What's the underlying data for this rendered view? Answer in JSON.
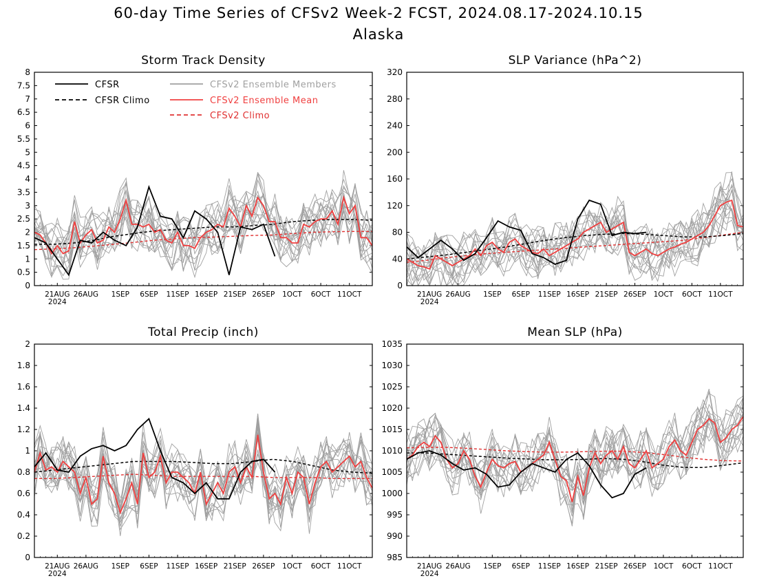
{
  "header": {
    "title": "60-day Time Series of CFSv2 Week-2 FCST, 2024.08.17-2024.10.15",
    "region": "Alaska"
  },
  "x_axis": {
    "tick_labels": [
      "21AUG",
      "26AUG",
      "1SEP",
      "6SEP",
      "11SEP",
      "16SEP",
      "21SEP",
      "26SEP",
      "1OCT",
      "6OCT",
      "11OCT"
    ],
    "tick_days": [
      4,
      9,
      15,
      20,
      25,
      30,
      35,
      40,
      45,
      50,
      55
    ],
    "year_label": "2024",
    "range_days": [
      0,
      59
    ]
  },
  "legend": {
    "cfsr": "CFSR",
    "cfsr_climo": "CFSR Climo",
    "members": "CFSv2 Ensemble Members",
    "ens_mean": "CFSv2 Ensemble Mean",
    "cfsv2_climo": "CFSv2 Climo"
  },
  "colors": {
    "cfsr": "#000000",
    "members": "#a0a0a0",
    "ens_mean": "#f04040",
    "cfsv2_climo": "#e03030"
  },
  "chart_data": [
    {
      "type": "line",
      "title": "Storm Track Density",
      "ylim": [
        0,
        8
      ],
      "yticks": [
        "0",
        "0.5",
        "1",
        "1.5",
        "2",
        "2.5",
        "3",
        "3.5",
        "4",
        "4.5",
        "5",
        "5.5",
        "6",
        "6.5",
        "7",
        "7.5",
        "8"
      ],
      "cfsr_x": [
        0,
        2,
        4,
        6,
        8,
        10,
        12,
        14,
        16,
        18,
        20,
        22,
        24,
        26,
        28,
        30,
        32,
        34,
        36,
        38,
        40,
        42
      ],
      "cfsr": [
        1.8,
        1.6,
        1.0,
        0.4,
        1.7,
        1.6,
        2.0,
        1.7,
        1.5,
        2.2,
        3.7,
        2.6,
        2.5,
        1.8,
        2.8,
        2.5,
        2.0,
        0.4,
        2.2,
        2.1,
        2.3,
        1.1
      ],
      "cfsr_climo": [
        1.55,
        1.55,
        1.6,
        1.7,
        1.85,
        1.95,
        2.05,
        2.1,
        2.15,
        2.2,
        2.2,
        2.25,
        2.3,
        2.4,
        2.45,
        2.48,
        2.48,
        2.45
      ],
      "ens_mean": [
        2.0,
        1.9,
        1.6,
        1.2,
        1.5,
        1.2,
        1.3,
        2.4,
        1.6,
        1.9,
        2.1,
        1.6,
        1.7,
        2.2,
        2.0,
        2.5,
        3.2,
        2.3,
        2.3,
        2.2,
        2.3,
        2.0,
        2.1,
        1.7,
        1.6,
        2.0,
        1.5,
        1.5,
        1.4,
        1.8,
        2.0,
        2.1,
        2.3,
        2.2,
        2.9,
        2.6,
        2.2,
        3.0,
        2.6,
        3.3,
        3.0,
        2.4,
        2.4,
        1.8,
        1.8,
        1.6,
        1.6,
        2.3,
        2.2,
        2.4,
        2.5,
        2.5,
        2.8,
        2.3,
        3.3,
        2.7,
        3.0,
        1.8,
        1.8,
        1.5
      ],
      "cfsv2_climo": [
        1.35,
        1.38,
        1.42,
        1.48,
        1.55,
        1.62,
        1.7,
        1.75,
        1.8,
        1.82,
        1.85,
        1.88,
        1.9,
        1.95,
        2.0,
        2.02,
        2.03,
        2.03
      ]
    },
    {
      "type": "line",
      "title": "SLP Variance (hPa^2)",
      "ylim": [
        0,
        320
      ],
      "yticks": [
        "0",
        "40",
        "80",
        "120",
        "160",
        "200",
        "240",
        "280",
        "320"
      ],
      "cfsr_x": [
        0,
        2,
        4,
        6,
        8,
        10,
        12,
        14,
        16,
        18,
        20,
        22,
        24,
        26,
        28,
        30,
        32,
        34,
        36,
        38,
        40,
        42
      ],
      "cfsr": [
        58,
        42,
        55,
        68,
        55,
        38,
        48,
        72,
        97,
        88,
        83,
        48,
        42,
        32,
        38,
        100,
        128,
        122,
        75,
        80,
        78,
        80
      ],
      "cfsr_climo": [
        40,
        43,
        46,
        50,
        54,
        58,
        63,
        68,
        72,
        75,
        77,
        78,
        77,
        75,
        73,
        73,
        75,
        78
      ],
      "ens_mean": [
        40,
        35,
        30,
        28,
        25,
        45,
        40,
        35,
        30,
        35,
        40,
        45,
        55,
        45,
        60,
        65,
        55,
        50,
        65,
        70,
        60,
        55,
        50,
        48,
        55,
        45,
        50,
        55,
        60,
        65,
        70,
        80,
        85,
        90,
        95,
        80,
        85,
        90,
        95,
        50,
        45,
        50,
        55,
        48,
        45,
        50,
        55,
        58,
        62,
        65,
        70,
        75,
        80,
        90,
        105,
        120,
        125,
        128,
        90,
        88
      ],
      "cfsv2_climo": [
        35,
        38,
        42,
        45,
        48,
        50,
        52,
        54,
        56,
        58,
        60,
        62,
        64,
        66,
        68,
        72,
        76,
        80
      ]
    },
    {
      "type": "line",
      "title": "Total Precip (inch)",
      "ylim": [
        0,
        2
      ],
      "yticks": [
        "0",
        "0.2",
        "0.4",
        "0.6",
        "0.8",
        "1",
        "1.2",
        "1.4",
        "1.6",
        "1.8",
        "2"
      ],
      "cfsr_x": [
        0,
        2,
        4,
        6,
        8,
        10,
        12,
        14,
        16,
        18,
        20,
        22,
        24,
        26,
        28,
        30,
        32,
        34,
        36,
        38,
        40,
        42
      ],
      "cfsr": [
        0.85,
        0.98,
        0.82,
        0.8,
        0.95,
        1.02,
        1.05,
        1.0,
        1.05,
        1.2,
        1.3,
        1.0,
        0.75,
        0.7,
        0.6,
        0.7,
        0.55,
        0.55,
        0.8,
        0.9,
        0.92,
        0.8
      ],
      "cfsr_climo": [
        0.8,
        0.82,
        0.84,
        0.86,
        0.88,
        0.9,
        0.9,
        0.9,
        0.89,
        0.88,
        0.88,
        0.9,
        0.92,
        0.9,
        0.86,
        0.82,
        0.8,
        0.79
      ],
      "ens_mean": [
        0.8,
        0.98,
        0.82,
        0.85,
        0.8,
        0.9,
        0.85,
        0.8,
        0.6,
        0.75,
        0.5,
        0.55,
        0.95,
        0.7,
        0.6,
        0.42,
        0.55,
        0.7,
        0.5,
        0.98,
        0.75,
        0.8,
        0.95,
        0.7,
        0.8,
        0.8,
        0.75,
        0.7,
        0.6,
        0.8,
        0.5,
        0.6,
        0.7,
        0.6,
        0.8,
        0.85,
        0.7,
        0.85,
        0.75,
        1.15,
        0.8,
        0.55,
        0.6,
        0.5,
        0.75,
        0.6,
        0.8,
        0.75,
        0.5,
        0.7,
        0.85,
        0.9,
        0.8,
        0.85,
        0.9,
        0.95,
        0.85,
        0.9,
        0.75,
        0.65
      ],
      "cfsv2_climo": [
        0.74,
        0.74,
        0.75,
        0.76,
        0.77,
        0.78,
        0.77,
        0.76,
        0.76,
        0.76,
        0.76,
        0.76,
        0.75,
        0.75,
        0.75,
        0.74,
        0.74,
        0.74
      ]
    },
    {
      "type": "line",
      "title": "Mean SLP (hPa)",
      "ylim": [
        985,
        1035
      ],
      "yticks": [
        "985",
        "990",
        "995",
        "1000",
        "1005",
        "1010",
        "1015",
        "1020",
        "1025",
        "1030",
        "1035"
      ],
      "cfsr_x": [
        0,
        2,
        4,
        6,
        8,
        10,
        12,
        14,
        16,
        18,
        20,
        22,
        24,
        26,
        28,
        30,
        32,
        34,
        36,
        38,
        40,
        42
      ],
      "cfsr": [
        1008,
        1009.5,
        1010,
        1009,
        1007,
        1005.5,
        1006,
        1004.5,
        1001.5,
        1002,
        1005,
        1007,
        1006,
        1005,
        1008,
        1009.5,
        1006.5,
        1002,
        999,
        1000,
        1004.5,
        1006
      ],
      "cfsr_climo": [
        1009.5,
        1009.5,
        1009.2,
        1008.9,
        1008.6,
        1008.3,
        1008.1,
        1007.9,
        1007.9,
        1008.0,
        1008.2,
        1008.0,
        1007.4,
        1006.6,
        1006.1,
        1006.1,
        1006.6,
        1007.2
      ],
      "ens_mean": [
        1008,
        1009,
        1011,
        1012,
        1011,
        1013.5,
        1012,
        1008,
        1006,
        1007,
        1010,
        1008,
        1004,
        1001.5,
        1005,
        1008,
        1006.5,
        1006,
        1007,
        1007.5,
        1005,
        1006,
        1007,
        1008,
        1009,
        1012,
        1008,
        1004,
        1003,
        998,
        1004,
        999.5,
        1006,
        1009.5,
        1007,
        1009,
        1010,
        1008,
        1011,
        1007,
        1006,
        1008,
        1010,
        1006,
        1007,
        1008,
        1011,
        1012.5,
        1010,
        1009,
        1012,
        1015,
        1016,
        1017.5,
        1016.5,
        1012,
        1013,
        1015,
        1016,
        1018
      ],
      "cfsv2_climo": [
        1010.7,
        1010.8,
        1010.8,
        1010.6,
        1010.3,
        1010.0,
        1009.8,
        1009.7,
        1009.7,
        1009.8,
        1009.9,
        1009.9,
        1009.6,
        1009.1,
        1008.5,
        1008.0,
        1007.7,
        1007.6
      ]
    }
  ]
}
